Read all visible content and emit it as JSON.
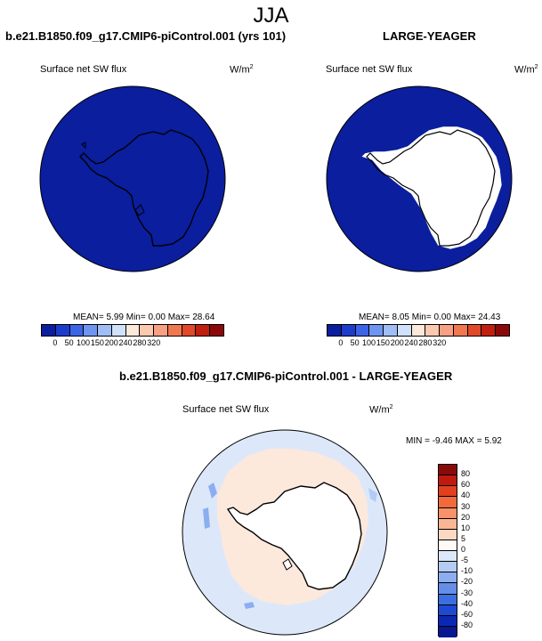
{
  "title": "JJA",
  "panel1": {
    "title": "b.e21.B1850.f09_g17.CMIP6-piControl.001 (yrs 101)",
    "var_label": "Surface net SW flux",
    "units_base": "W/m",
    "units_exp": "2",
    "stats": "MEAN=  5.99  Min=   0.00  Max=  28.64"
  },
  "panel2": {
    "title": "LARGE-YEAGER",
    "var_label": "Surface net SW flux",
    "units_base": "W/m",
    "units_exp": "2",
    "stats": "MEAN=  8.05  Min=   0.00  Max=  24.43"
  },
  "panel3": {
    "title": "b.e21.B1850.f09_g17.CMIP6-piControl.001 - LARGE-YEAGER",
    "var_label": "Surface net SW flux",
    "units_base": "W/m",
    "units_exp": "2",
    "stats": "MIN =  -9.46 MAX =   5.92"
  },
  "colorbar_horizontal": {
    "ticks": [
      "0",
      "50",
      "100",
      "150",
      "200",
      "240",
      "280",
      "320"
    ],
    "colors": [
      "#0a1e9e",
      "#1e3ccb",
      "#3c64e6",
      "#6e96f0",
      "#a0bef5",
      "#d2e1fa",
      "#fde8dc",
      "#fbc8b0",
      "#f7a084",
      "#f07850",
      "#e04a2a",
      "#c02010",
      "#8a0a0a"
    ]
  },
  "colorbar_vertical": {
    "ticks": [
      "80",
      "60",
      "40",
      "30",
      "20",
      "10",
      "5",
      "0",
      "-5",
      "-10",
      "-20",
      "-30",
      "-40",
      "-60",
      "-80"
    ],
    "colors": [
      "#8a0a0a",
      "#c01a10",
      "#e0401e",
      "#f06a3c",
      "#f7926a",
      "#fbb694",
      "#fdd8c2",
      "#fffaf5",
      "#dce8fa",
      "#b4ccf5",
      "#8caef0",
      "#648ee8",
      "#3c6ee0",
      "#1e4ad2",
      "#0a28b4",
      "#081890"
    ]
  }
}
